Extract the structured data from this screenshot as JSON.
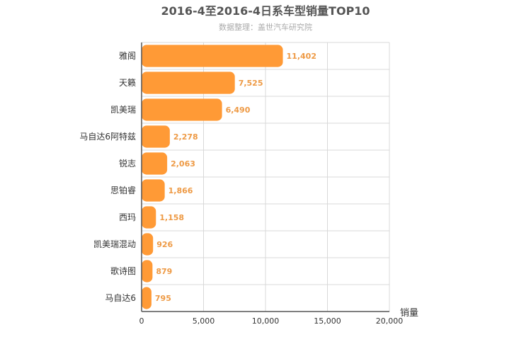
{
  "chart_data": {
    "type": "bar",
    "orientation": "horizontal",
    "title": "2016-4至2016-4日系车型销量TOP10",
    "subtitle": "数据整理：盖世汽车研究院",
    "xlabel": "销量",
    "ylabel": "",
    "categories": [
      "雅阁",
      "天籁",
      "凯美瑞",
      "马自达6阿特兹",
      "锐志",
      "思铂睿",
      "西玛",
      "凯美瑞混动",
      "歌诗图",
      "马自达6"
    ],
    "values": [
      11402,
      7525,
      6490,
      2278,
      2063,
      1866,
      1158,
      926,
      879,
      795
    ],
    "value_labels": [
      "11,402",
      "7,525",
      "6,490",
      "2,278",
      "2,063",
      "1,866",
      "1,158",
      "926",
      "879",
      "795"
    ],
    "xlim": [
      0,
      20000
    ],
    "x_ticks": [
      0,
      5000,
      10000,
      15000,
      20000
    ],
    "x_tick_labels": [
      "0",
      "5,000",
      "10,000",
      "15,000",
      "20,000"
    ],
    "grid": true,
    "legend": "none",
    "colors": {
      "bar": "#ff9a36",
      "value_label": "#ee9a45",
      "grid": "#d8d8d8",
      "axis": "#555555",
      "title": "#555555",
      "subtitle": "#aaaaaa"
    }
  }
}
